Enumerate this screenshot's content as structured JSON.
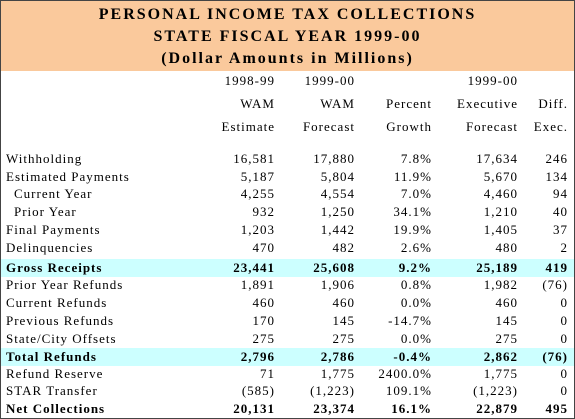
{
  "header": {
    "title_lines": [
      "PERSONAL INCOME TAX COLLECTIONS",
      "STATE FISCAL YEAR 1999-00",
      "(Dollar Amounts in Millions)"
    ]
  },
  "table": {
    "columns": [
      [
        "1998-99",
        "WAM",
        "Estimate"
      ],
      [
        "1999-00",
        "WAM",
        "Forecast"
      ],
      [
        "Percent",
        "Growth"
      ],
      [
        "1999-00",
        "Executive",
        "Forecast"
      ],
      [
        "Diff.",
        "Exec."
      ]
    ],
    "rows": [
      {
        "label": "Withholding",
        "values": [
          "16,581",
          "17,880",
          "7.8%",
          "17,634",
          "246"
        ]
      },
      {
        "label": "Estimated Payments",
        "values": [
          "5,187",
          "5,804",
          "11.9%",
          "5,670",
          "134"
        ]
      },
      {
        "label": "Current Year",
        "values": [
          "4,255",
          "4,554",
          "7.0%",
          "4,460",
          "94"
        ],
        "indent": true
      },
      {
        "label": "Prior Year",
        "values": [
          "932",
          "1,250",
          "34.1%",
          "1,210",
          "40"
        ],
        "indent": true
      },
      {
        "label": "Final Payments",
        "values": [
          "1,203",
          "1,442",
          "19.9%",
          "1,405",
          "37"
        ]
      },
      {
        "label": "Delinquencies",
        "values": [
          "470",
          "482",
          "2.6%",
          "480",
          "2"
        ]
      },
      {
        "label": "Gross Receipts",
        "values": [
          "23,441",
          "25,608",
          "9.2%",
          "25,189",
          "419"
        ],
        "bold": true,
        "highlight": true
      },
      {
        "label": "Prior Year Refunds",
        "values": [
          "1,891",
          "1,906",
          "0.8%",
          "1,982",
          "(76)"
        ]
      },
      {
        "label": "Current Refunds",
        "values": [
          "460",
          "460",
          "0.0%",
          "460",
          "0"
        ]
      },
      {
        "label": "Previous Refunds",
        "values": [
          "170",
          "145",
          "-14.7%",
          "145",
          "0"
        ]
      },
      {
        "label": "State/City Offsets",
        "values": [
          "275",
          "275",
          "0.0%",
          "275",
          "0"
        ]
      },
      {
        "label": "Total Refunds",
        "values": [
          "2,796",
          "2,786",
          "-0.4%",
          "2,862",
          "(76)"
        ],
        "bold": true,
        "highlight": true
      },
      {
        "label": "Refund Reserve",
        "values": [
          "71",
          "1,775",
          "2400.0%",
          "1,775",
          "0"
        ]
      },
      {
        "label": "STAR Transfer",
        "values": [
          "(585)",
          "(1,223)",
          "109.1%",
          "(1,223)",
          "0"
        ]
      },
      {
        "label": "Net Collections",
        "values": [
          "20,131",
          "23,374",
          "16.1%",
          "22,879",
          "495"
        ],
        "bold": true
      }
    ]
  }
}
